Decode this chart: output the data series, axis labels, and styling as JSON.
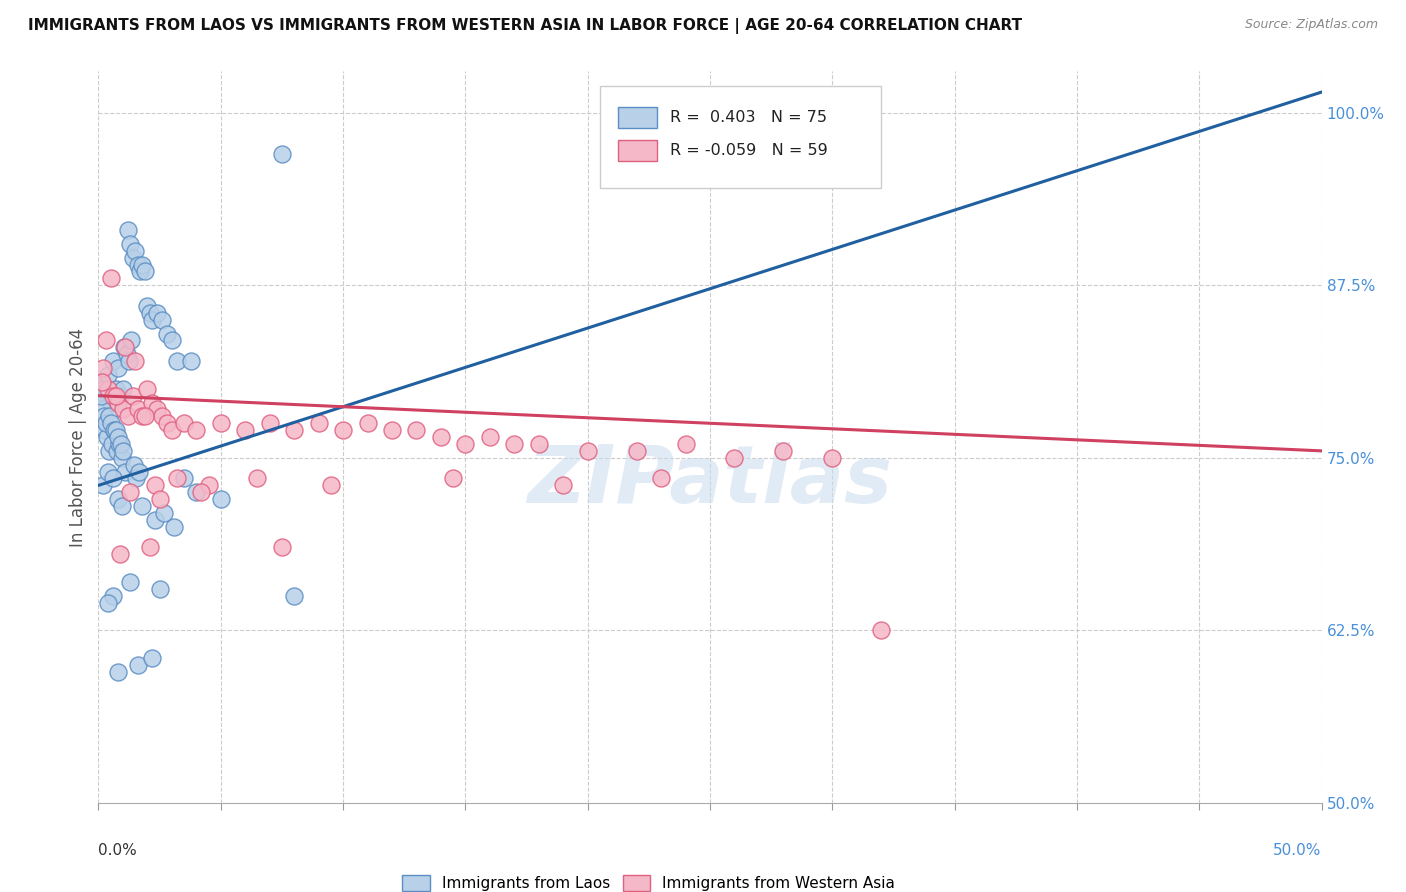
{
  "title": "IMMIGRANTS FROM LAOS VS IMMIGRANTS FROM WESTERN ASIA IN LABOR FORCE | AGE 20-64 CORRELATION CHART",
  "source": "Source: ZipAtlas.com",
  "ylabel_left": "In Labor Force | Age 20-64",
  "right_yticks": [
    50.0,
    62.5,
    75.0,
    87.5,
    100.0
  ],
  "right_ytick_labels": [
    "50.0%",
    "62.5%",
    "75.0%",
    "87.5%",
    "100.0%"
  ],
  "xmin": 0.0,
  "xmax": 50.0,
  "ymin": 50.0,
  "ymax": 103.0,
  "legend_blue_label": "Immigrants from Laos",
  "legend_pink_label": "Immigrants from Western Asia",
  "blue_R": 0.403,
  "blue_N": 75,
  "pink_R": -0.059,
  "pink_N": 59,
  "blue_color": "#b8d0e8",
  "blue_edge_color": "#5b8ec4",
  "pink_color": "#f5b8c8",
  "pink_edge_color": "#e06080",
  "watermark": "ZIPatlas",
  "blue_scatter_x": [
    0.1,
    0.2,
    0.3,
    0.4,
    0.5,
    0.6,
    0.7,
    0.8,
    0.9,
    1.0,
    0.15,
    0.25,
    0.35,
    0.45,
    0.55,
    0.65,
    0.75,
    0.85,
    0.95,
    1.1,
    1.2,
    1.3,
    1.4,
    1.5,
    1.6,
    1.7,
    1.8,
    1.9,
    2.0,
    2.1,
    2.2,
    2.4,
    2.6,
    2.8,
    3.0,
    3.2,
    1.05,
    1.15,
    1.25,
    1.35,
    1.45,
    1.55,
    1.65,
    0.12,
    0.22,
    0.32,
    0.42,
    0.52,
    0.62,
    0.72,
    0.82,
    0.92,
    1.02,
    3.5,
    4.0,
    5.0,
    2.3,
    2.7,
    3.1,
    1.8,
    2.5,
    1.3,
    0.6,
    7.5,
    8.0,
    3.8,
    0.4,
    0.8,
    1.6,
    2.2,
    0.18,
    0.38,
    0.58,
    0.78,
    0.98
  ],
  "blue_scatter_y": [
    80.5,
    80.0,
    79.5,
    81.0,
    79.0,
    82.0,
    80.0,
    81.5,
    79.5,
    80.0,
    78.5,
    77.0,
    76.5,
    75.5,
    76.0,
    77.0,
    75.5,
    76.0,
    75.0,
    74.0,
    91.5,
    90.5,
    89.5,
    90.0,
    89.0,
    88.5,
    89.0,
    88.5,
    86.0,
    85.5,
    85.0,
    85.5,
    85.0,
    84.0,
    83.5,
    82.0,
    83.0,
    82.5,
    82.0,
    83.5,
    74.5,
    73.5,
    74.0,
    79.5,
    78.0,
    77.5,
    78.0,
    77.5,
    77.0,
    77.0,
    76.5,
    76.0,
    75.5,
    73.5,
    72.5,
    72.0,
    70.5,
    71.0,
    70.0,
    71.5,
    65.5,
    66.0,
    65.0,
    97.0,
    65.0,
    82.0,
    64.5,
    59.5,
    60.0,
    60.5,
    73.0,
    74.0,
    73.5,
    72.0,
    71.5
  ],
  "pink_scatter_x": [
    0.2,
    0.4,
    0.6,
    0.8,
    1.0,
    1.2,
    1.4,
    1.6,
    1.8,
    2.0,
    2.2,
    2.4,
    2.6,
    2.8,
    3.0,
    3.5,
    4.0,
    5.0,
    6.0,
    7.0,
    8.0,
    9.0,
    10.0,
    11.0,
    12.0,
    13.0,
    14.0,
    15.0,
    16.0,
    17.0,
    18.0,
    20.0,
    22.0,
    24.0,
    26.0,
    28.0,
    30.0,
    0.3,
    0.7,
    1.1,
    1.5,
    1.9,
    2.3,
    3.2,
    4.5,
    6.5,
    9.5,
    14.5,
    19.0,
    23.0,
    0.5,
    1.3,
    2.5,
    4.2,
    7.5,
    0.15,
    0.9,
    2.1,
    32.0
  ],
  "pink_scatter_y": [
    81.5,
    80.0,
    79.5,
    79.0,
    78.5,
    78.0,
    79.5,
    78.5,
    78.0,
    80.0,
    79.0,
    78.5,
    78.0,
    77.5,
    77.0,
    77.5,
    77.0,
    77.5,
    77.0,
    77.5,
    77.0,
    77.5,
    77.0,
    77.5,
    77.0,
    77.0,
    76.5,
    76.0,
    76.5,
    76.0,
    76.0,
    75.5,
    75.5,
    76.0,
    75.0,
    75.5,
    75.0,
    83.5,
    79.5,
    83.0,
    82.0,
    78.0,
    73.0,
    73.5,
    73.0,
    73.5,
    73.0,
    73.5,
    73.0,
    73.5,
    88.0,
    72.5,
    72.0,
    72.5,
    68.5,
    80.5,
    68.0,
    68.5,
    62.5
  ],
  "blue_trend_x0": 0.0,
  "blue_trend_x1": 50.0,
  "blue_trend_y0": 73.0,
  "blue_trend_y1": 101.5,
  "pink_trend_x0": 0.0,
  "pink_trend_x1": 50.0,
  "pink_trend_y0": 79.5,
  "pink_trend_y1": 75.5,
  "blue_line_color": "#2060a0",
  "pink_line_color": "#d04060",
  "grid_color": "#cccccc",
  "background_color": "#ffffff",
  "xtick_positions": [
    0,
    5,
    10,
    15,
    20,
    25,
    30,
    35,
    40,
    45,
    50
  ]
}
